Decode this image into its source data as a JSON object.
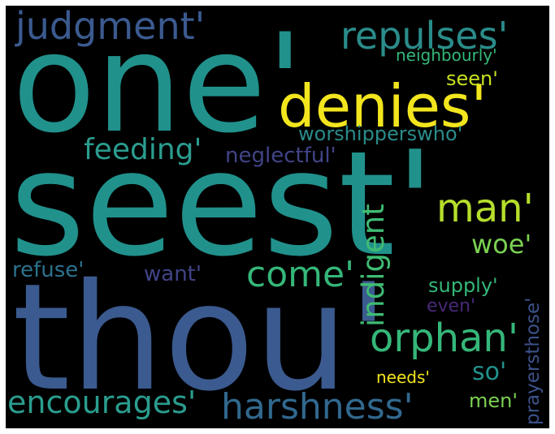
{
  "cloud": {
    "words": [
      {
        "id": "one",
        "text": "one'",
        "color": "#21918c"
      },
      {
        "id": "seest",
        "text": "seest'",
        "color": "#21918c"
      },
      {
        "id": "thou",
        "text": "thou'",
        "color": "#3b5a8f"
      },
      {
        "id": "denies",
        "text": "denies'",
        "color": "#f2e51d"
      },
      {
        "id": "judgment",
        "text": "judgment'",
        "color": "#3b5a8f"
      },
      {
        "id": "repulses",
        "text": "repulses'",
        "color": "#2a8c8a"
      },
      {
        "id": "neighbourly",
        "text": "neighbourly'",
        "color": "#35b779"
      },
      {
        "id": "seen",
        "text": "seen'",
        "color": "#c8e020"
      },
      {
        "id": "worshipperswho",
        "text": "worshipperswho'",
        "color": "#2a8c8a"
      },
      {
        "id": "feeding",
        "text": "feeding'",
        "color": "#2a9d8f"
      },
      {
        "id": "neglectful",
        "text": "neglectful'",
        "color": "#414487"
      },
      {
        "id": "man",
        "text": "man'",
        "color": "#b5de2b"
      },
      {
        "id": "indigent",
        "text": "indigent",
        "color": "#3fbc73"
      },
      {
        "id": "woe",
        "text": "woe'",
        "color": "#7ad151"
      },
      {
        "id": "come",
        "text": "come'",
        "color": "#35b779"
      },
      {
        "id": "refuse",
        "text": "refuse'",
        "color": "#2c728e"
      },
      {
        "id": "want",
        "text": "want'",
        "color": "#414487"
      },
      {
        "id": "supply",
        "text": "supply'",
        "color": "#35b779"
      },
      {
        "id": "even",
        "text": "even'",
        "color": "#482878"
      },
      {
        "id": "prayersthose",
        "text": "prayersthose'",
        "color": "#3b528b"
      },
      {
        "id": "orphan",
        "text": "orphan'",
        "color": "#35b779"
      },
      {
        "id": "so",
        "text": "so'",
        "color": "#21918c"
      },
      {
        "id": "needs",
        "text": "needs'",
        "color": "#f2e51d"
      },
      {
        "id": "encourages",
        "text": "encourages'",
        "color": "#2a9d8f"
      },
      {
        "id": "harshness",
        "text": "harshness'",
        "color": "#31688e"
      },
      {
        "id": "men",
        "text": "men'",
        "color": "#7ad151"
      }
    ]
  }
}
